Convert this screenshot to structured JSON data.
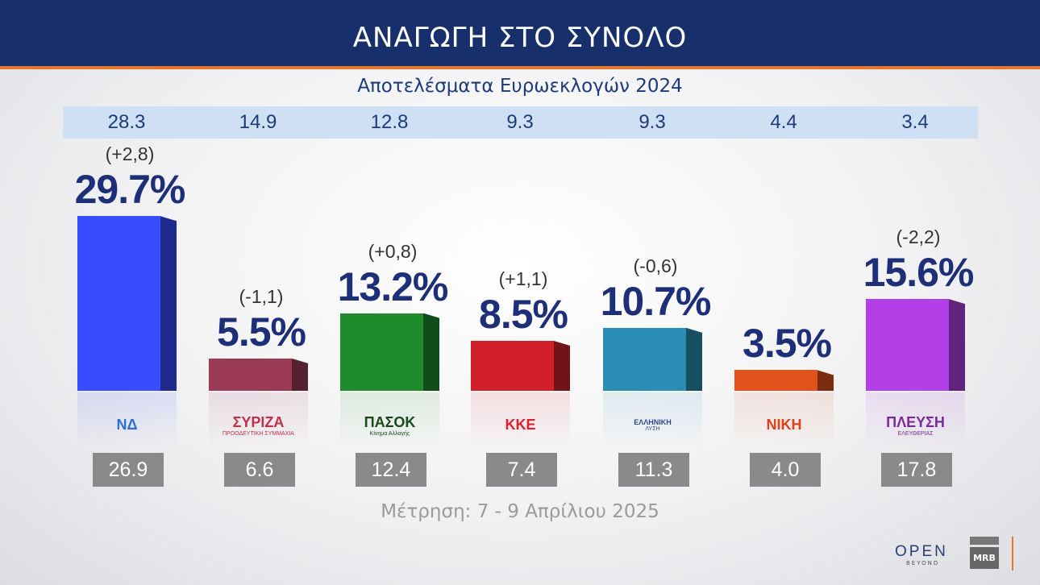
{
  "header": {
    "title": "ΑΝΑΓΩΓΗ ΣΤΟ ΣΥΝΟΛΟ"
  },
  "subtitle": "Αποτελέσματα Ευρωεκλογών 2024",
  "footer": "Μέτρηση: 7 - 9 Απρίλιου 2025",
  "branding": {
    "open": "OPEN",
    "beyond": "BEYOND",
    "mrb": "MRB"
  },
  "chart_data": {
    "type": "bar",
    "categories": [
      "ΝΔ",
      "ΣΥΡΙΖΑ",
      "ΠΑΣΟΚ",
      "ΚΚΕ",
      "ΕΛΛΗΝΙΚΗ ΛΥΣΗ",
      "ΝΙΚΗ",
      "ΠΛΕΥΣΗ ΕΛΕΥΘΕΡΙΑΣ"
    ],
    "values": [
      29.7,
      5.5,
      13.2,
      8.5,
      10.7,
      3.5,
      15.6
    ],
    "value_labels": [
      "29.7%",
      "5.5%",
      "13.2%",
      "8.5%",
      "10.7%",
      "3.5%",
      "15.6%"
    ],
    "changes": [
      "(+2,8)",
      "(-1,1)",
      "(+0,8)",
      "(+1,1)",
      "(-0,6)",
      "",
      "(-2,2)"
    ],
    "euro_2024": [
      "28.3",
      "14.9",
      "12.8",
      "9.3",
      "9.3",
      "4.4",
      "3.4"
    ],
    "previous_measurement": [
      "26.9",
      "6.6",
      "12.4",
      "7.4",
      "11.3",
      "4.0",
      "17.8"
    ],
    "colors": [
      "#3a4cff",
      "#9a3a55",
      "#1f8c2c",
      "#d1202b",
      "#2a8db3",
      "#e2521c",
      "#b33fe6"
    ],
    "logos": [
      {
        "text": "ΝΔ",
        "sub": "",
        "color": "#2a6fd6"
      },
      {
        "text": "ΣΥΡΙΖΑ",
        "sub": "ΠΡΟΟΔΕΥΤΙΚΗ ΣΥΜΜΑΧΙΑ",
        "color": "#c0304a"
      },
      {
        "text": "ΠΑΣΟΚ",
        "sub": "Κίνημα Αλλαγής",
        "color": "#1a4a1a"
      },
      {
        "text": "ΚΚΕ",
        "sub": "",
        "color": "#e0202a"
      },
      {
        "text": "ΕΛΛΗΝΙΚΗ",
        "sub": "ΛΥΣΗ",
        "color": "#2a4a8a"
      },
      {
        "text": "ΝΙΚΗ",
        "sub": "",
        "color": "#e0401a"
      },
      {
        "text": "ΠΛΕΥΣΗ",
        "sub": "ΕΛΕΥΘΕΡΙΑΣ",
        "color": "#7a2a9a"
      }
    ],
    "ylim": [
      0,
      30
    ]
  }
}
